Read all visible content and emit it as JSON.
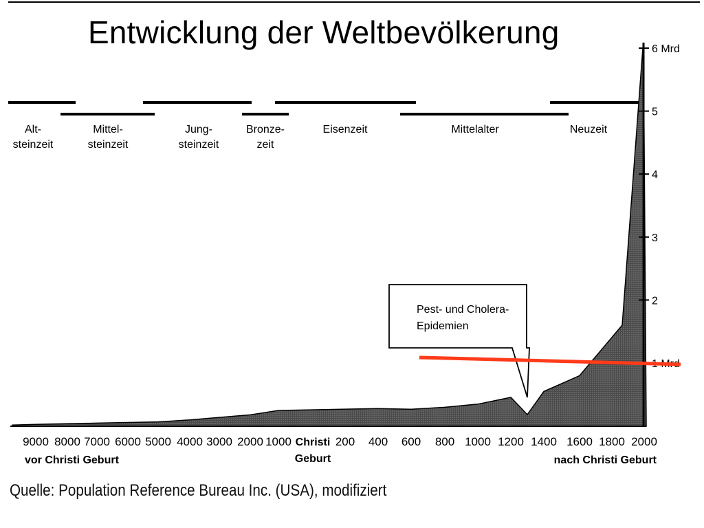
{
  "title": "Entwicklung der Weltbevölkerung",
  "source": "Quelle: Population Reference Bureau Inc. (USA), modifiziert",
  "chart_data": {
    "type": "area",
    "title": "Entwicklung der Weltbevölkerung",
    "xlabel": "",
    "ylabel": "",
    "y_unit": "Mrd",
    "ylim": [
      0,
      6
    ],
    "yticks": [
      {
        "value": 1,
        "label": "1 Mrd"
      },
      {
        "value": 2,
        "label": "2"
      },
      {
        "value": 3,
        "label": "3"
      },
      {
        "value": 4,
        "label": "4"
      },
      {
        "value": 5,
        "label": "5"
      },
      {
        "value": 6,
        "label": "6 Mrd"
      }
    ],
    "xticks": [
      "9000",
      "8000",
      "7000",
      "6000",
      "5000",
      "4000",
      "3000",
      "2000",
      "1000",
      "Christi Geburt",
      "200",
      "400",
      "600",
      "800",
      "1000",
      "1200",
      "1400",
      "1600",
      "1800",
      "2000"
    ],
    "era_labels": [
      "vor Christi Geburt",
      "nach Christi Geburt"
    ],
    "series": [
      {
        "values": [
          0.02,
          0.03,
          0.04,
          0.05,
          0.06,
          0.07,
          0.1,
          0.14,
          0.18,
          0.25,
          0.26,
          0.28,
          0.27,
          0.3,
          0.35,
          0.4,
          0.37,
          0.55,
          0.8,
          1.6,
          6.0
        ]
      }
    ],
    "periods": [
      {
        "label": "Alt-\nsteinzeit",
        "span": [
          "9000",
          "8000"
        ]
      },
      {
        "label": "Mittel-\nsteinzeit",
        "span": [
          "8000",
          "5000"
        ]
      },
      {
        "label": "Jung-\nsteinzeit",
        "span": [
          "5000",
          "2000"
        ]
      },
      {
        "label": "Bronze-\nzeit",
        "span": [
          "2000",
          "1000"
        ]
      },
      {
        "label": "Eisenzeit",
        "span": [
          "1000",
          "600"
        ]
      },
      {
        "label": "Mittelalter",
        "span": [
          "600",
          "1500"
        ]
      },
      {
        "label": "Neuzeit",
        "span": [
          "1500",
          "2000"
        ]
      }
    ],
    "annotations": [
      {
        "text": "Pest- und Cholera-\nEpidemien",
        "x": 1350
      }
    ],
    "reference_line": {
      "value": 1,
      "color": "#ff3b1a"
    },
    "colors": {
      "area": "#3a3a3a",
      "line": "#000000",
      "highlight": "#ff3b1a"
    },
    "grid": false
  }
}
